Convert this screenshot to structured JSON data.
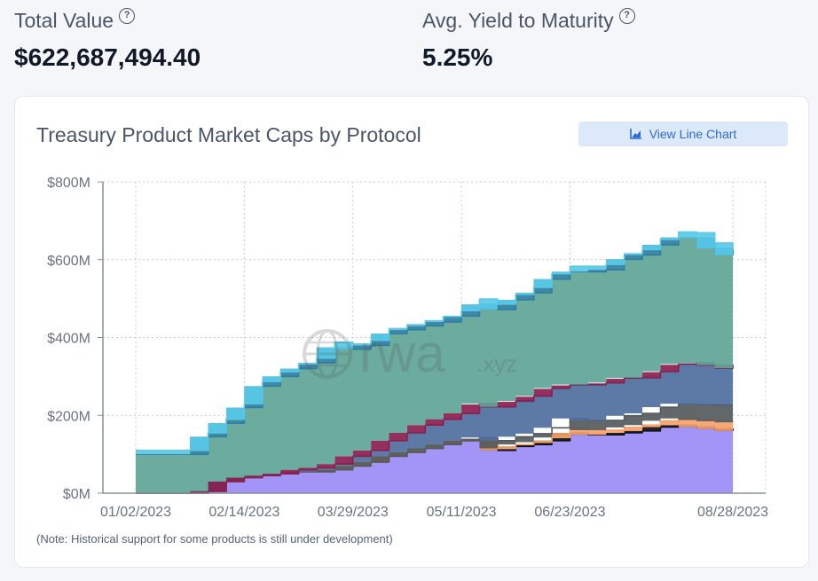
{
  "stats": {
    "total_value_label": "Total Value",
    "total_value": "$622,687,494.40",
    "yield_label": "Avg. Yield to Maturity",
    "yield_value": "5.25%"
  },
  "card": {
    "title": "Treasury Product Market Caps by Protocol",
    "view_button": "View Line Chart",
    "note": "(Note: Historical support for some products is still under development)",
    "watermark_text": "rwa",
    "watermark_suffix": ".xyz"
  },
  "icons": {
    "help": "question-circle-icon",
    "button": "line-chart-icon",
    "watermark": "globe-icon"
  },
  "chart_data": {
    "type": "area",
    "stacked": true,
    "title": "Treasury Product Market Caps by Protocol",
    "xlabel": "",
    "ylabel": "",
    "ylim": [
      0,
      800
    ],
    "y_unit": "$M",
    "yticks": [
      0,
      200,
      400,
      600,
      800
    ],
    "ytick_labels": [
      "$0M",
      "$200M",
      "$400M",
      "$600M",
      "$800M"
    ],
    "xtick_labels": [
      "01/02/2023",
      "02/14/2023",
      "03/29/2023",
      "05/11/2023",
      "06/23/2023",
      "08/28/2023"
    ],
    "xtick_index": [
      0,
      6,
      12,
      18,
      24,
      33
    ],
    "x": [
      "01/02/2023",
      "01/09/2023",
      "01/16/2023",
      "01/23/2023",
      "01/30/2023",
      "02/06/2023",
      "02/14/2023",
      "02/21/2023",
      "02/28/2023",
      "03/07/2023",
      "03/14/2023",
      "03/21/2023",
      "03/29/2023",
      "04/05/2023",
      "04/12/2023",
      "04/19/2023",
      "04/26/2023",
      "05/03/2023",
      "05/11/2023",
      "05/18/2023",
      "05/25/2023",
      "06/01/2023",
      "06/08/2023",
      "06/15/2023",
      "06/23/2023",
      "06/30/2023",
      "07/07/2023",
      "07/14/2023",
      "07/21/2023",
      "07/28/2023",
      "08/04/2023",
      "08/11/2023",
      "08/18/2023",
      "08/28/2023"
    ],
    "grid": true,
    "series": [
      {
        "color": "#9b8cf7",
        "values": [
          0,
          0,
          0,
          0,
          5,
          30,
          40,
          45,
          50,
          55,
          55,
          60,
          70,
          80,
          95,
          105,
          115,
          125,
          135,
          140,
          110,
          120,
          125,
          135,
          155,
          150,
          150,
          155,
          160,
          170,
          175,
          170,
          165,
          160
        ]
      },
      {
        "color": "#111111",
        "values": [
          0,
          0,
          0,
          0,
          0,
          0,
          0,
          0,
          0,
          0,
          0,
          0,
          0,
          0,
          0,
          0,
          0,
          0,
          0,
          0,
          0,
          0,
          0,
          0,
          0,
          0,
          0,
          0,
          0,
          0,
          0,
          0,
          0,
          0
        ]
      },
      {
        "color": "#f5a26a",
        "values": [
          0,
          0,
          0,
          0,
          0,
          0,
          0,
          0,
          0,
          0,
          0,
          0,
          0,
          0,
          0,
          0,
          0,
          0,
          0,
          0,
          5,
          5,
          6,
          8,
          12,
          12,
          12,
          14,
          15,
          16,
          17,
          18,
          20,
          22
        ]
      },
      {
        "color": "#555a5d",
        "values": [
          0,
          0,
          0,
          0,
          0,
          0,
          0,
          0,
          0,
          0,
          0,
          0,
          0,
          0,
          0,
          0,
          0,
          0,
          0,
          3,
          20,
          20,
          22,
          25,
          25,
          25,
          25,
          30,
          30,
          35,
          38,
          40,
          42,
          45
        ]
      },
      {
        "color": "#4e6f9d",
        "values": [
          0,
          0,
          0,
          0,
          0,
          0,
          0,
          0,
          0,
          5,
          10,
          15,
          25,
          30,
          40,
          50,
          60,
          65,
          70,
          85,
          85,
          90,
          95,
          100,
          85,
          90,
          95,
          95,
          90,
          90,
          100,
          105,
          100,
          92
        ]
      },
      {
        "color": "#8a1e4f",
        "values": [
          0,
          0,
          0,
          0,
          0,
          0,
          0,
          0,
          0,
          0,
          0,
          0,
          0,
          0,
          0,
          0,
          0,
          0,
          0,
          2,
          2,
          2,
          2,
          2,
          2,
          2,
          2,
          2,
          2,
          2,
          2,
          2,
          2,
          2
        ]
      },
      {
        "color": "#5ea596",
        "values": [
          100,
          100,
          100,
          100,
          140,
          150,
          180,
          230,
          250,
          260,
          270,
          300,
          275,
          270,
          275,
          265,
          255,
          250,
          250,
          255,
          250,
          260,
          265,
          280,
          290,
          290,
          290,
          305,
          315,
          325,
          325,
          320,
          300,
          290
        ]
      },
      {
        "color": "#2f7ea1",
        "values": [
          0,
          0,
          0,
          0,
          0,
          0,
          0,
          0,
          0,
          0,
          0,
          0,
          0,
          0,
          0,
          0,
          0,
          0,
          0,
          0,
          0,
          0,
          0,
          0,
          0,
          0,
          0,
          0,
          0,
          0,
          0,
          0,
          0,
          0
        ]
      },
      {
        "color": "#58c9e8",
        "values": [
          10,
          10,
          10,
          10,
          10,
          10,
          10,
          12,
          12,
          12,
          12,
          13,
          13,
          13,
          13,
          13,
          13,
          14,
          14,
          14,
          14,
          14,
          14,
          14,
          14,
          14,
          14,
          14,
          14,
          14,
          14,
          14,
          14,
          14
        ]
      }
    ]
  }
}
